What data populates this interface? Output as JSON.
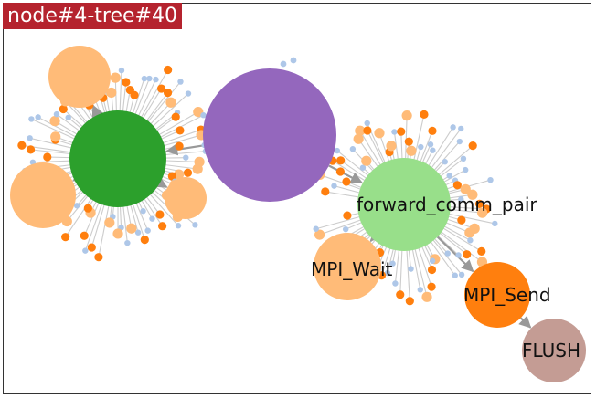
{
  "title": "node#4-tree#40",
  "colors": {
    "title_bg": "#b5232e",
    "green_dark": "#2ca02c",
    "purple": "#9467bd",
    "green_light": "#98df8a",
    "orange_light": "#ffbb78",
    "orange": "#ff7f0e",
    "rose": "#c49c94",
    "blue_light": "#aec7e8",
    "edge": "#cccccc",
    "arrow": "#999999"
  },
  "nodes": [
    {
      "id": "hub-green",
      "label": "",
      "color": "#2ca02c"
    },
    {
      "id": "hub-purple",
      "label": "",
      "color": "#9467bd"
    },
    {
      "id": "forward_comm_pair",
      "label": "forward_comm_pair",
      "color": "#98df8a"
    },
    {
      "id": "mpi_wait",
      "label": "MPI_Wait",
      "color": "#ffbb78"
    },
    {
      "id": "mpi_send",
      "label": "MPI_Send",
      "color": "#ff7f0e"
    },
    {
      "id": "flush",
      "label": "FLUSH",
      "color": "#c49c94"
    },
    {
      "id": "orange-big-1",
      "label": "",
      "color": "#ffbb78"
    },
    {
      "id": "orange-big-2",
      "label": "",
      "color": "#ffbb78"
    },
    {
      "id": "orange-big-3",
      "label": "",
      "color": "#ffbb78"
    }
  ],
  "edges": [
    {
      "from": "hub-purple",
      "to": "hub-green"
    },
    {
      "from": "hub-purple",
      "to": "forward_comm_pair"
    },
    {
      "from": "forward_comm_pair",
      "to": "mpi_wait"
    },
    {
      "from": "forward_comm_pair",
      "to": "mpi_send"
    },
    {
      "from": "mpi_send",
      "to": "flush"
    },
    {
      "from": "hub-green",
      "to": "orange-big-1"
    },
    {
      "from": "hub-green",
      "to": "orange-big-2"
    },
    {
      "from": "hub-green",
      "to": "orange-big-3"
    }
  ]
}
